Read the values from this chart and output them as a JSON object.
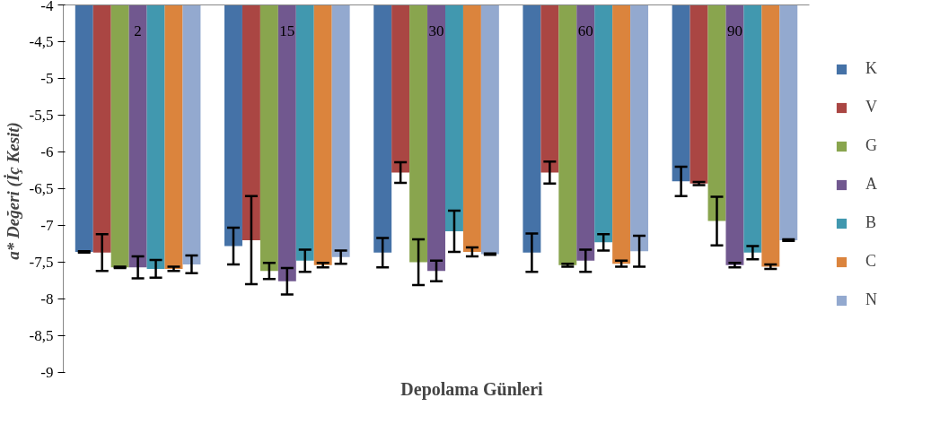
{
  "chart_data": {
    "type": "bar",
    "xlabel": "Depolama Günleri",
    "ylabel": "a* Değeri  (İç Kesit)",
    "categories": [
      "2",
      "15",
      "30",
      "60",
      "90"
    ],
    "series": [
      {
        "name": "K",
        "color": "#4572a7",
        "values": [
          -7.36,
          -7.28,
          -7.37,
          -7.37,
          -6.4
        ],
        "errors": [
          0.01,
          0.25,
          0.2,
          0.26,
          0.2
        ]
      },
      {
        "name": "V",
        "color": "#aa4643",
        "values": [
          -7.37,
          -7.2,
          -6.28,
          -6.28,
          -6.43
        ],
        "errors": [
          0.25,
          0.6,
          0.14,
          0.15,
          0.02
        ]
      },
      {
        "name": "G",
        "color": "#89a54e",
        "values": [
          -7.57,
          -7.62,
          -7.5,
          -7.54,
          -6.94
        ],
        "errors": [
          0.01,
          0.11,
          0.31,
          0.02,
          0.33
        ]
      },
      {
        "name": "A",
        "color": "#71588f",
        "values": [
          -7.57,
          -7.76,
          -7.62,
          -7.48,
          -7.54
        ],
        "errors": [
          0.15,
          0.18,
          0.14,
          0.15,
          0.03
        ]
      },
      {
        "name": "B",
        "color": "#4198af",
        "values": [
          -7.59,
          -7.48,
          -7.08,
          -7.23,
          -7.37
        ],
        "errors": [
          0.12,
          0.15,
          0.28,
          0.11,
          0.09
        ]
      },
      {
        "name": "C",
        "color": "#db843d",
        "values": [
          -7.59,
          -7.54,
          -7.36,
          -7.52,
          -7.56
        ],
        "errors": [
          0.03,
          0.03,
          0.06,
          0.04,
          0.03
        ]
      },
      {
        "name": "N",
        "color": "#93a9cf",
        "values": [
          -7.53,
          -7.43,
          -7.39,
          -7.35,
          -7.2
        ],
        "errors": [
          0.12,
          0.09,
          0.01,
          0.21,
          0.01
        ]
      }
    ],
    "ylim": [
      -9,
      -4
    ],
    "yticks": [
      -9,
      {
        "value": -8.5,
        "label": "-8,5"
      },
      -8,
      {
        "value": -7.5,
        "label": "-7,5"
      },
      -7,
      {
        "value": -6.5,
        "label": "-6,5"
      },
      -6,
      {
        "value": -5.5,
        "label": "-5,5"
      },
      -5,
      {
        "value": -4.5,
        "label": "-4,5"
      },
      -4
    ],
    "grid": false,
    "legend": "right"
  }
}
